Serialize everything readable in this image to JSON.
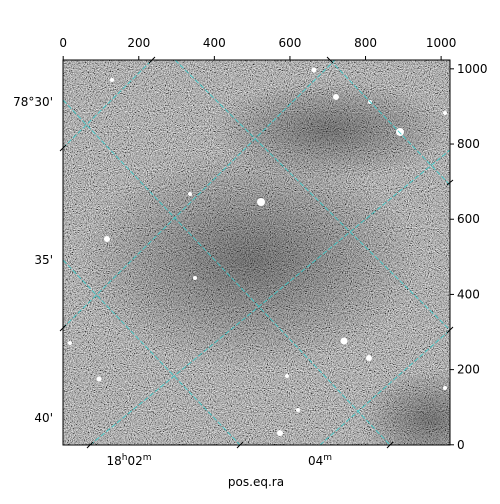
{
  "chart_data": {
    "type": "image",
    "xlabel": "pos.eq.ra",
    "xlim": [
      -0.5,
      1023.5
    ],
    "xticks": [
      0,
      200,
      400,
      600,
      800,
      1000
    ],
    "y2lim": [
      -0.5,
      1023.5
    ],
    "y2ticks": [
      0,
      200,
      400,
      600,
      800,
      1000
    ],
    "dec_tick_labels": [
      "78°30'",
      "35'",
      "40'"
    ],
    "ra_tick_labels": [
      [
        "18",
        "h",
        "02",
        "m"
      ],
      [
        "04",
        "m"
      ]
    ]
  }
}
